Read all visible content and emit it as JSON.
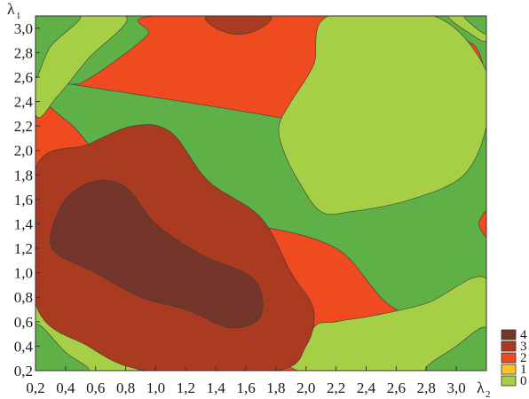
{
  "chart_data": {
    "type": "contour",
    "xlabel": "λ",
    "xlabel_sub": "2",
    "ylabel": "λ",
    "ylabel_sub": "1",
    "xlim": [
      0.2,
      3.2
    ],
    "ylim": [
      0.2,
      3.1
    ],
    "x_ticks": [
      "0,2",
      "0,4",
      "0,6",
      "0,8",
      "1,0",
      "1,2",
      "1,4",
      "1,6",
      "1,8",
      "2,0",
      "2,2",
      "2,4",
      "2,6",
      "2,8",
      "3,0"
    ],
    "y_ticks": [
      "0,2",
      "0,4",
      "0,6",
      "0,8",
      "1,0",
      "1,2",
      "1,4",
      "1,6",
      "1,8",
      "2,0",
      "2,2",
      "2,4",
      "2,6",
      "2,8",
      "3,0"
    ],
    "grid": false,
    "legend_position": "right-bottom",
    "levels": [
      {
        "label": "4",
        "color": "#74362a"
      },
      {
        "label": "3",
        "color": "#aa3a20"
      },
      {
        "label": "2",
        "color": "#ef4a20"
      },
      {
        "label": "1",
        "color": "#fbc624"
      },
      {
        "label": "0",
        "color": "#a6cf45"
      }
    ],
    "lowest_band_color": "#5fb047",
    "regions": [
      {
        "level": 3,
        "points": [
          [
            1.9,
            2.25
          ],
          [
            2.4,
            2.05
          ],
          [
            3.0,
            2.15
          ],
          [
            3.2,
            2.2
          ],
          [
            3.2,
            0.55
          ],
          [
            2.6,
            0.7
          ],
          [
            2.2,
            1.2
          ],
          [
            1.6,
            1.4
          ],
          [
            1.1,
            1.45
          ],
          [
            0.7,
            1.85
          ],
          [
            0.4,
            2.25
          ],
          [
            0.2,
            2.25
          ],
          [
            0.2,
            0.8
          ],
          [
            0.5,
            0.45
          ],
          [
            0.85,
            0.2
          ],
          [
            2.6,
            0.2
          ],
          [
            3.2,
            0.48
          ],
          [
            3.2,
            2.5
          ],
          [
            3.0,
            2.95
          ],
          [
            2.5,
            3.1
          ],
          [
            1.0,
            3.1
          ],
          [
            0.95,
            2.95
          ],
          [
            0.75,
            2.75
          ],
          [
            0.5,
            2.55
          ],
          [
            0.4,
            2.55
          ]
        ]
      },
      {
        "level": 1,
        "points": [
          [
            0.2,
            2.3
          ],
          [
            0.35,
            2.45
          ],
          [
            0.55,
            2.75
          ],
          [
            0.8,
            3.1
          ],
          [
            0.2,
            3.1
          ]
        ]
      },
      {
        "level": 1,
        "points": [
          [
            2.95,
            3.1
          ],
          [
            3.1,
            2.95
          ],
          [
            3.2,
            2.9
          ],
          [
            3.2,
            3.1
          ]
        ]
      },
      {
        "level": 1,
        "points": [
          [
            0.2,
            0.75
          ],
          [
            0.55,
            0.45
          ],
          [
            0.8,
            0.25
          ],
          [
            0.85,
            0.2
          ],
          [
            0.2,
            0.2
          ]
        ]
      },
      {
        "level": 1,
        "points": [
          [
            2.55,
            0.2
          ],
          [
            2.9,
            0.5
          ],
          [
            3.2,
            0.75
          ],
          [
            3.2,
            0.2
          ]
        ]
      },
      {
        "level": 1,
        "points": [
          [
            1.9,
            2.4
          ],
          [
            2.05,
            2.7
          ],
          [
            2.15,
            3.1
          ],
          [
            2.85,
            3.1
          ],
          [
            3.2,
            2.65
          ],
          [
            3.2,
            2.2
          ],
          [
            3.05,
            1.8
          ],
          [
            2.7,
            1.6
          ],
          [
            2.3,
            1.5
          ],
          [
            2.1,
            1.5
          ],
          [
            1.95,
            1.75
          ],
          [
            1.85,
            2.0
          ],
          [
            1.82,
            2.2
          ]
        ]
      },
      {
        "level": 1,
        "points": [
          [
            1.95,
            0.2
          ],
          [
            2.05,
            0.55
          ],
          [
            2.2,
            0.6
          ],
          [
            2.45,
            0.65
          ],
          [
            2.8,
            0.75
          ],
          [
            3.2,
            0.95
          ],
          [
            3.2,
            0.2
          ]
        ]
      },
      {
        "level": 0,
        "points": [
          [
            0.2,
            2.6
          ],
          [
            0.3,
            2.85
          ],
          [
            0.5,
            3.1
          ],
          [
            0.2,
            3.1
          ]
        ]
      },
      {
        "level": 0,
        "points": [
          [
            3.05,
            3.1
          ],
          [
            3.2,
            2.95
          ],
          [
            3.2,
            3.1
          ]
        ]
      },
      {
        "level": 0,
        "points": [
          [
            0.2,
            0.58
          ],
          [
            0.4,
            0.35
          ],
          [
            0.55,
            0.2
          ],
          [
            0.2,
            0.2
          ]
        ]
      },
      {
        "level": 0,
        "points": [
          [
            2.8,
            0.2
          ],
          [
            3.0,
            0.4
          ],
          [
            3.2,
            0.55
          ],
          [
            3.2,
            0.2
          ]
        ]
      },
      {
        "level": 4,
        "points": [
          [
            0.2,
            1.85
          ],
          [
            0.55,
            2.05
          ],
          [
            0.85,
            2.2
          ],
          [
            1.1,
            2.15
          ],
          [
            1.35,
            1.75
          ],
          [
            1.7,
            1.45
          ],
          [
            1.9,
            1.0
          ],
          [
            2.05,
            0.7
          ],
          [
            2.0,
            0.4
          ],
          [
            1.8,
            0.2
          ],
          [
            0.95,
            0.2
          ],
          [
            0.55,
            0.4
          ],
          [
            0.2,
            0.75
          ]
        ]
      },
      {
        "level": 5,
        "points": [
          [
            0.3,
            1.3
          ],
          [
            0.4,
            1.6
          ],
          [
            0.6,
            1.75
          ],
          [
            0.8,
            1.7
          ],
          [
            1.0,
            1.4
          ],
          [
            1.3,
            1.15
          ],
          [
            1.65,
            0.95
          ],
          [
            1.7,
            0.65
          ],
          [
            1.5,
            0.55
          ],
          [
            1.2,
            0.7
          ],
          [
            0.9,
            0.8
          ],
          [
            0.6,
            1.0
          ],
          [
            0.35,
            1.15
          ]
        ]
      },
      {
        "level": 4,
        "points": [
          [
            1.35,
            3.1
          ],
          [
            1.4,
            3.0
          ],
          [
            1.55,
            2.95
          ],
          [
            1.7,
            3.0
          ],
          [
            1.75,
            3.1
          ]
        ]
      },
      {
        "level": 3,
        "points": [
          [
            3.15,
            1.4
          ],
          [
            3.2,
            1.3
          ],
          [
            3.2,
            1.5
          ]
        ]
      }
    ]
  }
}
